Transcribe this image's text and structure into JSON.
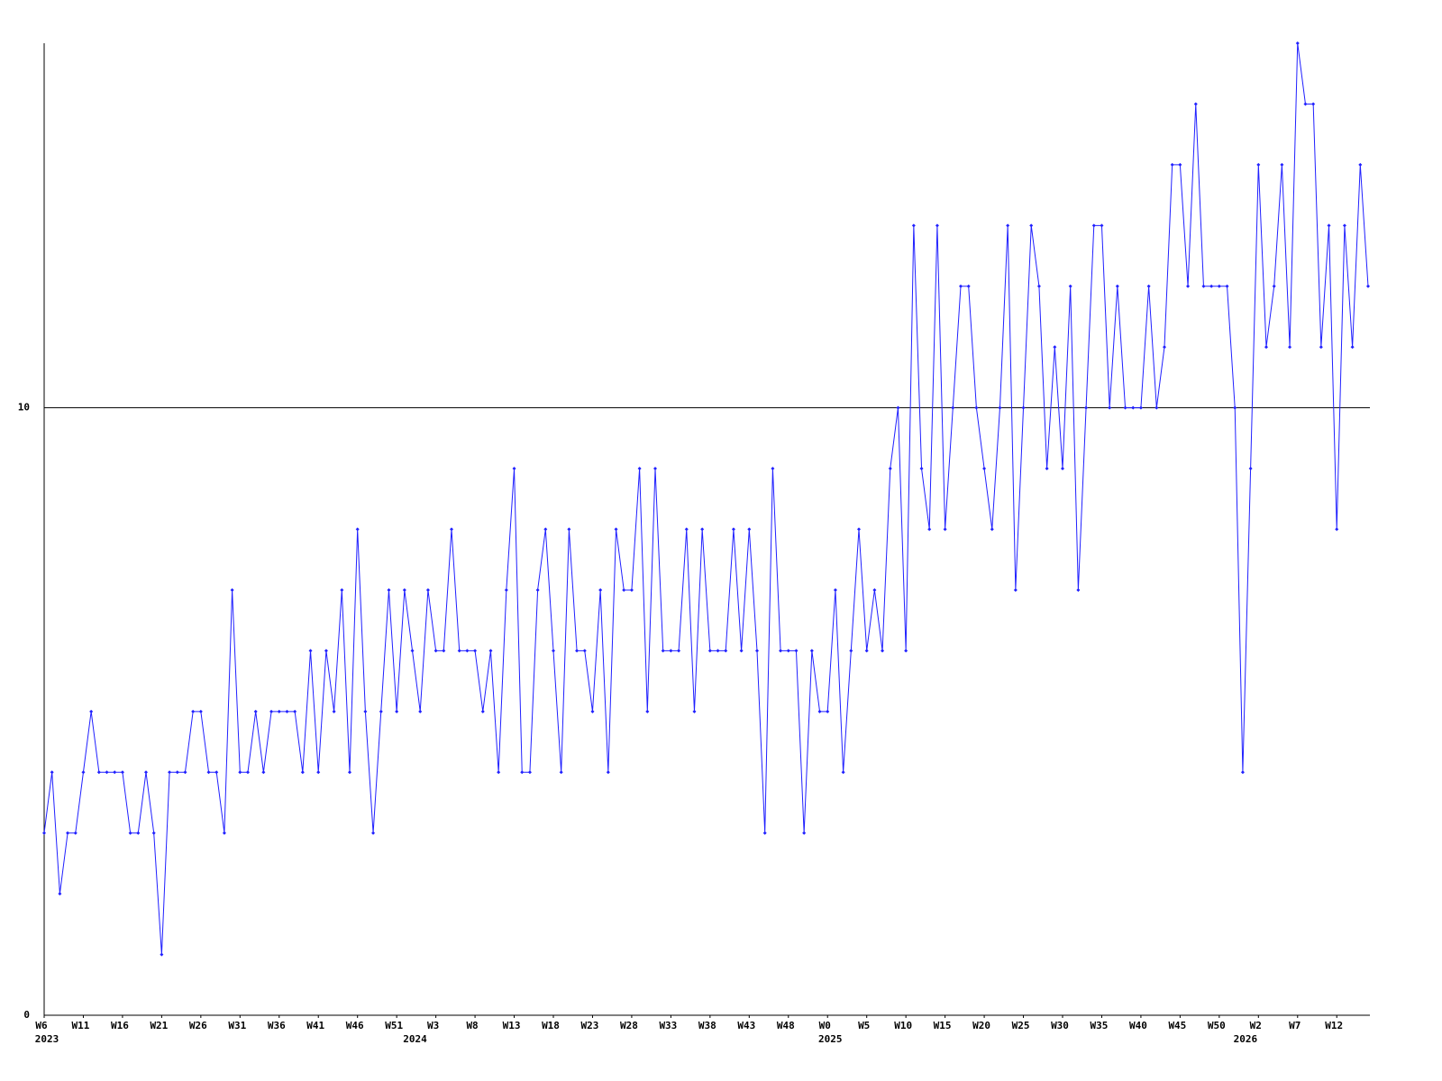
{
  "chart_data": {
    "type": "line",
    "color": "#2020ff",
    "grid": true,
    "values": [
      3,
      4,
      2,
      3,
      3,
      4,
      5,
      4,
      4,
      4,
      4,
      3,
      3,
      4,
      3,
      1,
      4,
      4,
      4,
      5,
      5,
      4,
      4,
      3,
      7,
      4,
      4,
      5,
      4,
      5,
      5,
      5,
      5,
      4,
      6,
      4,
      6,
      5,
      7,
      4,
      8,
      5,
      3,
      5,
      7,
      5,
      7,
      6,
      5,
      7,
      6,
      6,
      8,
      6,
      6,
      6,
      5,
      6,
      4,
      7,
      9,
      4,
      4,
      7,
      8,
      6,
      4,
      8,
      6,
      6,
      5,
      7,
      4,
      8,
      7,
      7,
      9,
      5,
      9,
      6,
      6,
      6,
      8,
      5,
      8,
      6,
      6,
      6,
      8,
      6,
      8,
      6,
      3,
      9,
      6,
      6,
      6,
      3,
      6,
      5,
      5,
      7,
      4,
      6,
      8,
      6,
      7,
      6,
      9,
      10,
      6,
      13,
      9,
      8,
      13,
      8,
      10,
      12,
      12,
      10,
      9,
      8,
      10,
      13,
      7,
      10,
      13,
      12,
      9,
      11,
      9,
      12,
      7,
      10,
      13,
      13,
      10,
      12,
      10,
      10,
      10,
      12,
      10,
      11,
      14,
      14,
      12,
      15,
      12,
      12,
      12,
      12,
      10,
      4,
      9,
      14,
      11,
      12,
      14,
      11,
      16,
      15,
      15,
      11,
      13,
      8,
      13,
      11,
      14,
      12
    ],
    "xlim": [
      0,
      169
    ],
    "xticks": [
      {
        "value": 0,
        "label": "W6"
      },
      {
        "value": 5,
        "label": "W11"
      },
      {
        "value": 10,
        "label": "W16"
      },
      {
        "value": 15,
        "label": "W21"
      },
      {
        "value": 20,
        "label": "W26"
      },
      {
        "value": 25,
        "label": "W31"
      },
      {
        "value": 30,
        "label": "W36"
      },
      {
        "value": 35,
        "label": "W41"
      },
      {
        "value": 40,
        "label": "W46"
      },
      {
        "value": 45,
        "label": "W51"
      },
      {
        "value": 50,
        "label": "W3"
      },
      {
        "value": 55,
        "label": "W8"
      },
      {
        "value": 60,
        "label": "W13"
      },
      {
        "value": 65,
        "label": "W18"
      },
      {
        "value": 70,
        "label": "W23"
      },
      {
        "value": 75,
        "label": "W28"
      },
      {
        "value": 80,
        "label": "W33"
      },
      {
        "value": 85,
        "label": "W38"
      },
      {
        "value": 90,
        "label": "W43"
      },
      {
        "value": 95,
        "label": "W48"
      },
      {
        "value": 100,
        "label": "W0"
      },
      {
        "value": 105,
        "label": "W5"
      },
      {
        "value": 110,
        "label": "W10"
      },
      {
        "value": 115,
        "label": "W15"
      },
      {
        "value": 120,
        "label": "W20"
      },
      {
        "value": 125,
        "label": "W25"
      },
      {
        "value": 130,
        "label": "W30"
      },
      {
        "value": 135,
        "label": "W35"
      },
      {
        "value": 140,
        "label": "W40"
      },
      {
        "value": 145,
        "label": "W45"
      },
      {
        "value": 150,
        "label": "W50"
      },
      {
        "value": 155,
        "label": "W2"
      },
      {
        "value": 160,
        "label": "W7"
      },
      {
        "value": 165,
        "label": "W12"
      }
    ],
    "year_ticks": [
      {
        "value": 0,
        "label": "2023"
      },
      {
        "value": 47,
        "label": "2024"
      },
      {
        "value": 100,
        "label": "2025"
      },
      {
        "value": 153,
        "label": "2026"
      }
    ],
    "ylim": [
      0,
      16
    ],
    "yticks": [
      0,
      10
    ]
  }
}
